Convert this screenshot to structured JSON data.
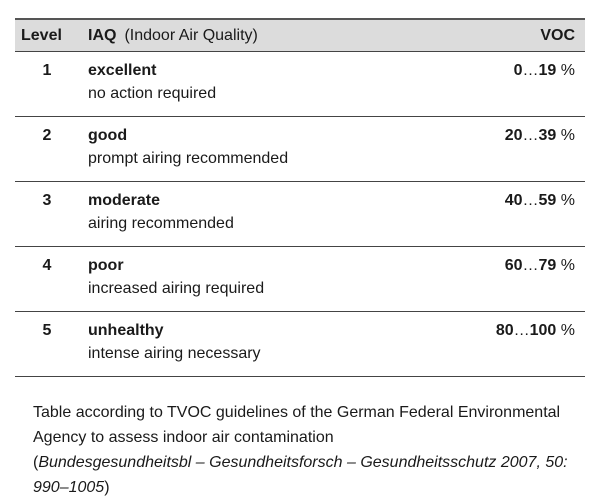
{
  "header": {
    "level": "Level",
    "iaq": "IAQ",
    "iaq_full": "(Indoor Air Quality)",
    "voc": "VOC"
  },
  "rows": [
    {
      "level": "1",
      "name": "excellent",
      "desc": "no action required",
      "min": "0",
      "max": "19",
      "unit": " %"
    },
    {
      "level": "2",
      "name": "good",
      "desc": "prompt airing recommended",
      "min": "20",
      "max": "39",
      "unit": " %"
    },
    {
      "level": "3",
      "name": "moderate",
      "desc": "airing recommended",
      "min": "40",
      "max": "59",
      "unit": " %"
    },
    {
      "level": "4",
      "name": "poor",
      "desc": "increased airing required",
      "min": "60",
      "max": "79",
      "unit": " %"
    },
    {
      "level": "5",
      "name": "unhealthy",
      "desc": "intense airing necessary",
      "min": "80",
      "max": "100",
      "unit": " %"
    }
  ],
  "caption": {
    "text": "Table according to TVOC guidelines of the German Federal Environmental Agency to assess indoor air contamination",
    "open": "(",
    "citation": "Bundesgesundheitsbl – Gesundheitsforsch – Gesundheitsschutz 2007, 50: 990–1005",
    "close": ")"
  }
}
